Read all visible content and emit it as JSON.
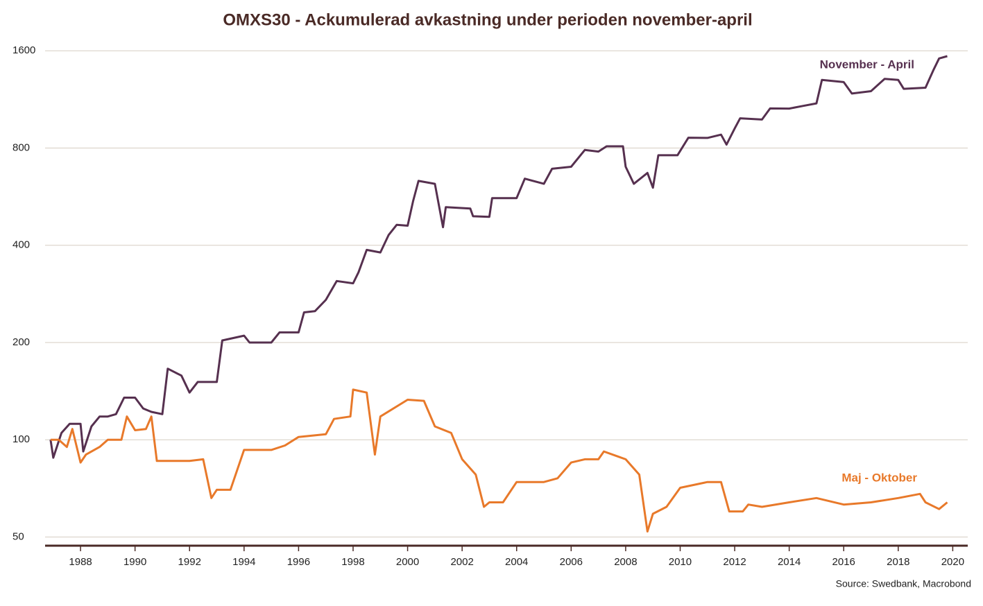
{
  "chart_data": {
    "type": "line",
    "title": "OMXS30 - Ackumulerad avkastning under perioden november-april",
    "source": "Source: Swedbank, Macrobond",
    "log_scale": true,
    "grid": true,
    "xlim": [
      1986.7,
      2020.55
    ],
    "xticks": [
      1988,
      1990,
      1992,
      1994,
      1996,
      1998,
      2000,
      2002,
      2004,
      2006,
      2008,
      2010,
      2012,
      2014,
      2016,
      2018,
      2020
    ],
    "ylim": [
      47,
      1700
    ],
    "yticks": [
      50,
      100,
      200,
      400,
      800,
      1600
    ],
    "series": [
      {
        "name": "November - April",
        "color": "#56304f",
        "x": [
          1986.9,
          1987.0,
          1987.3,
          1987.6,
          1988.0,
          1988.1,
          1988.4,
          1988.7,
          1989.0,
          1989.3,
          1989.6,
          1990.0,
          1990.3,
          1990.6,
          1991.0,
          1991.2,
          1991.7,
          1992.0,
          1992.3,
          1993.0,
          1993.2,
          1994.0,
          1994.2,
          1995.0,
          1995.3,
          1996.0,
          1996.2,
          1996.6,
          1997.0,
          1997.4,
          1998.0,
          1998.2,
          1998.5,
          1999.0,
          1999.3,
          1999.6,
          2000.0,
          2000.2,
          2000.4,
          2001.0,
          2001.3,
          2001.4,
          2002.3,
          2002.4,
          2003.0,
          2003.1,
          2004.0,
          2004.3,
          2005.0,
          2005.3,
          2006.0,
          2006.5,
          2007.0,
          2007.3,
          2007.9,
          2008.0,
          2008.3,
          2008.8,
          2009.0,
          2009.2,
          2009.9,
          2010.3,
          2011.0,
          2011.5,
          2011.7,
          2012.0,
          2012.2,
          2013.0,
          2013.3,
          2014.0,
          2014.5,
          2015.0,
          2015.2,
          2016.0,
          2016.3,
          2017.0,
          2017.5,
          2018.0,
          2018.2,
          2019.0,
          2019.3,
          2019.5,
          2019.8
        ],
        "values": [
          100,
          88,
          105,
          112,
          112,
          92,
          110,
          118,
          118,
          120,
          135,
          135,
          125,
          122,
          120,
          166,
          158,
          140,
          151,
          151,
          203,
          210,
          200,
          200,
          215,
          215,
          248,
          250,
          271,
          310,
          305,
          330,
          387,
          380,
          430,
          463,
          460,
          547,
          633,
          620,
          455,
          525,
          520,
          492,
          490,
          560,
          560,
          643,
          620,
          690,
          700,
          789,
          780,
          810,
          810,
          700,
          620,
          670,
          603,
          760,
          760,
          861,
          860,
          880,
          820,
          920,
          989,
          980,
          1061,
          1060,
          1080,
          1100,
          1300,
          1280,
          1180,
          1200,
          1310,
          1300,
          1220,
          1230,
          1400,
          1515,
          1540
        ]
      },
      {
        "name": "Maj - Oktober",
        "color": "#e8792a",
        "x": [
          1986.9,
          1987.2,
          1987.5,
          1987.7,
          1988.0,
          1988.2,
          1988.7,
          1989.0,
          1989.5,
          1989.7,
          1990.0,
          1990.4,
          1990.6,
          1990.8,
          1991.0,
          1992.0,
          1992.5,
          1992.8,
          1993.0,
          1993.5,
          1994.0,
          1995.0,
          1995.5,
          1996.0,
          1997.0,
          1997.3,
          1997.9,
          1998.0,
          1998.5,
          1998.8,
          1999.0,
          2000.0,
          2000.6,
          2001.0,
          2001.6,
          2002.0,
          2002.5,
          2002.8,
          2003.0,
          2003.5,
          2004.0,
          2005.0,
          2005.5,
          2006.0,
          2006.5,
          2007.0,
          2007.2,
          2008.0,
          2008.5,
          2008.8,
          2009.0,
          2009.5,
          2010.0,
          2011.0,
          2011.5,
          2011.8,
          2012.3,
          2012.5,
          2013.0,
          2014.0,
          2015.0,
          2016.0,
          2017.0,
          2018.0,
          2018.8,
          2019.0,
          2019.5,
          2019.8
        ],
        "values": [
          100,
          100,
          95,
          108,
          85,
          90,
          95,
          100,
          100,
          118,
          107,
          108,
          118,
          86,
          86,
          86,
          87,
          66,
          70,
          70,
          93,
          93,
          96,
          102,
          104,
          116,
          118,
          143,
          140,
          90,
          118,
          133,
          132,
          110,
          105,
          87,
          78,
          62,
          64,
          64,
          74,
          74,
          76,
          85,
          87,
          87,
          92,
          87,
          78,
          52,
          59,
          62,
          71,
          74,
          74,
          60,
          60,
          63,
          62,
          64,
          66,
          63,
          64,
          66,
          68,
          64,
          61,
          64
        ]
      }
    ]
  }
}
